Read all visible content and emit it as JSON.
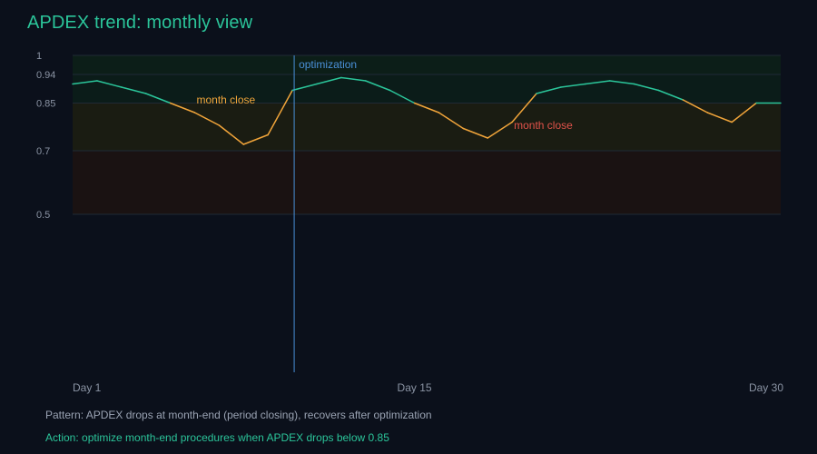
{
  "title": "APDEX trend: monthly view",
  "footer": {
    "pattern": "Pattern: APDEX drops at month-end (period closing), recovers after optimization",
    "action": "Action: optimize month-end procedures when APDEX drops below 0.85"
  },
  "colors": {
    "good": "#2bc59a",
    "warn": "#f0a43a",
    "bad": "#e0524a",
    "marker": "#4a90d9",
    "tick": "#8a93a3",
    "zone_excellent": "#0c1e18",
    "zone_good": "#0b1c19",
    "zone_fair": "#1a1c12",
    "zone_poor": "#1a1212"
  },
  "chart_data": {
    "type": "line",
    "title": "APDEX trend: monthly view",
    "xlabel": "",
    "ylabel": "",
    "x_tick_labels": [
      {
        "x": 1,
        "label": "Day 1"
      },
      {
        "x": 15,
        "label": "Day 15"
      },
      {
        "x": 30,
        "label": "Day 30"
      }
    ],
    "y_ticks": [
      0.5,
      0.7,
      0.85,
      0.94,
      1.0
    ],
    "ylim": [
      0.5,
      1.0
    ],
    "xlim": [
      1,
      30
    ],
    "zones": [
      {
        "from": 0.94,
        "to": 1.0,
        "level": "excellent"
      },
      {
        "from": 0.85,
        "to": 0.94,
        "level": "good"
      },
      {
        "from": 0.7,
        "to": 0.85,
        "level": "fair"
      },
      {
        "from": 0.5,
        "to": 0.7,
        "level": "poor"
      }
    ],
    "series": [
      {
        "x": [
          1,
          2,
          3,
          4,
          5,
          6,
          7,
          8,
          9,
          10,
          11,
          12,
          13,
          14,
          15,
          16,
          17,
          18,
          19,
          20,
          21,
          22,
          23,
          24,
          25,
          26,
          27,
          28,
          29,
          30
        ],
        "values": [
          0.91,
          0.92,
          0.9,
          0.88,
          0.85,
          0.82,
          0.78,
          0.72,
          0.75,
          0.89,
          0.91,
          0.93,
          0.92,
          0.89,
          0.85,
          0.82,
          0.77,
          0.74,
          0.79,
          0.88,
          0.9,
          0.91,
          0.92,
          0.91,
          0.89,
          0.86,
          0.82,
          0.79,
          0.85,
          0.85
        ]
      }
    ],
    "thresholds": {
      "good": 0.85
    },
    "annotations": [
      {
        "x": 10,
        "text": "optimization",
        "kind": "vline"
      },
      {
        "x": 6,
        "y": 0.86,
        "text": "month close",
        "kind": "label",
        "color": "warn"
      },
      {
        "x": 19,
        "y": 0.78,
        "text": "month close",
        "kind": "label",
        "color": "bad"
      }
    ]
  }
}
